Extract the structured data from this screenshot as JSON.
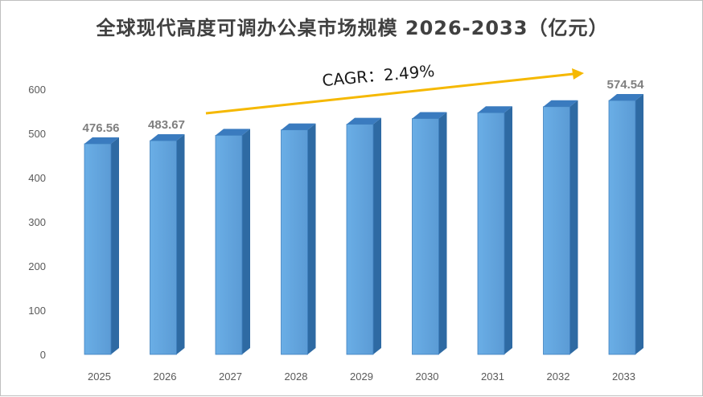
{
  "chart_data": {
    "type": "bar",
    "title": "全球现代高度可调办公桌市场规模 2026-2033（亿元）",
    "categories": [
      "2025",
      "2026",
      "2027",
      "2028",
      "2029",
      "2030",
      "2031",
      "2032",
      "2033"
    ],
    "values": [
      476.56,
      483.67,
      495.7,
      508.0,
      520.7,
      533.6,
      546.9,
      560.5,
      574.54
    ],
    "data_labels": {
      "2025": "476.56",
      "2026": "483.67",
      "2033": "574.54"
    },
    "ylim": [
      0,
      600
    ],
    "yticks": [
      0,
      100,
      200,
      300,
      400,
      500,
      600
    ],
    "grid": false,
    "annotation": "CAGR：2.49%",
    "colors": {
      "bar_front": "#5b9bd5",
      "bar_side": "#2e6aa3",
      "bar_top": "#3a7bbf",
      "arrow": "#f5b800",
      "label": "#7f7f7f",
      "axis_text": "#595959"
    }
  }
}
